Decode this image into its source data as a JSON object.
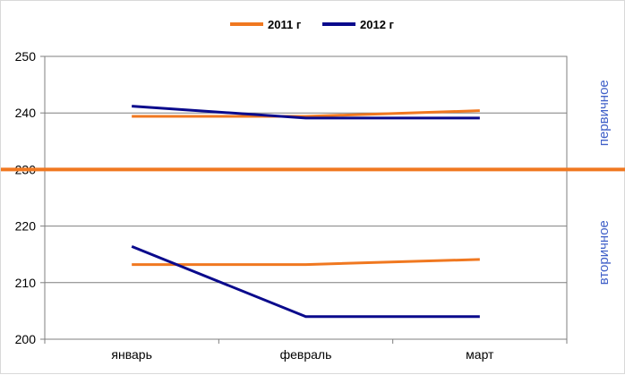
{
  "chart_data": {
    "type": "line",
    "categories": [
      "январь",
      "февраль",
      "март"
    ],
    "series": [
      {
        "name": "2011 г",
        "color": "#f07820",
        "values_upper": [
          239.4,
          239.4,
          240.4
        ],
        "values_lower": [
          213.2,
          213.2,
          214.1
        ]
      },
      {
        "name": "2012 г",
        "color": "#0a0a8c",
        "values_upper": [
          241.2,
          239.1,
          239.1
        ],
        "values_lower": [
          216.4,
          204.0,
          204.0
        ]
      }
    ],
    "ylim": [
      200,
      250
    ],
    "yticks": [
      200,
      210,
      220,
      230,
      240,
      250
    ],
    "divider_value": 230,
    "divider_color": "#f07820",
    "grid": true,
    "legend_position": "top-center",
    "side_labels": {
      "upper": "первичное",
      "lower": "вторичное"
    },
    "side_label_color": "#4060c8"
  }
}
